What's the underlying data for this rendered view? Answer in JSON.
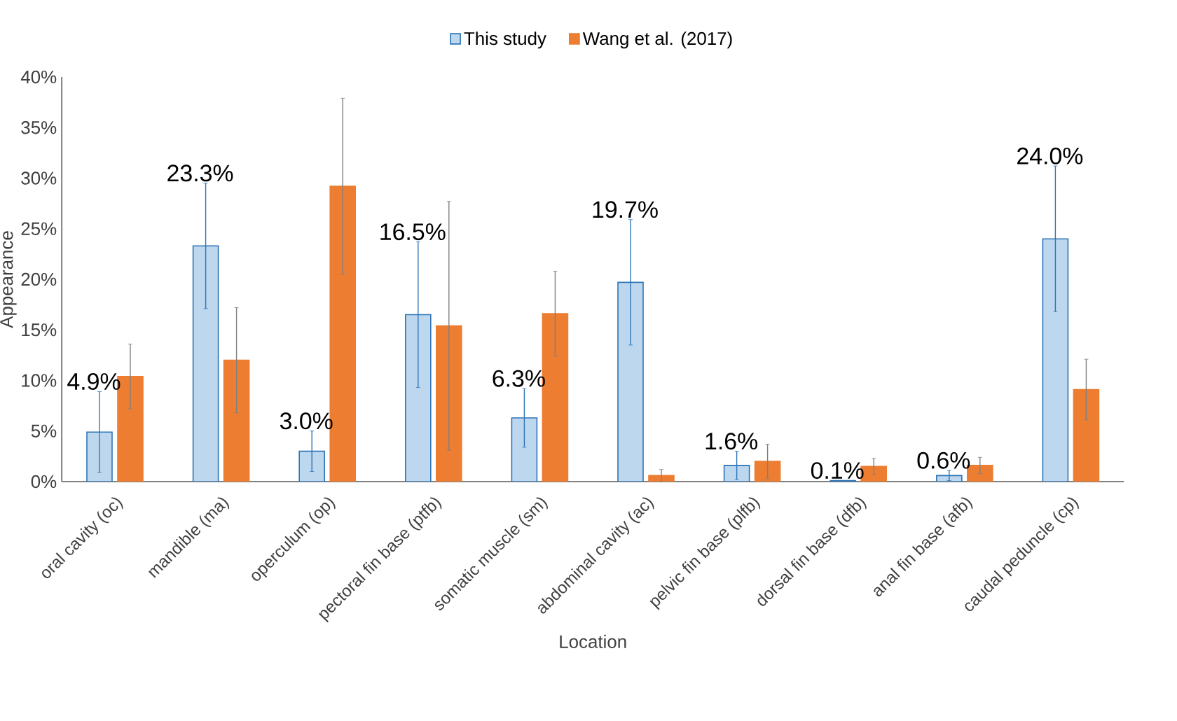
{
  "chart_data": {
    "type": "bar",
    "xlabel": "Location",
    "ylabel": "Appearance",
    "categories": [
      "oral cavity (oc)",
      "mandible (ma)",
      "operculum (op)",
      "pectoral fin base (ptfb)",
      "somatic muscle (sm)",
      "abdominal cavity (ac)",
      "pelvic fin base (plfb)",
      "dorsal fin base (dfb)",
      "anal fin base (afb)",
      "caudal peduncle (cp)"
    ],
    "series": [
      {
        "name": "This study",
        "color": "#bdd7ee",
        "values": [
          4.9,
          23.3,
          3.0,
          16.5,
          6.3,
          19.7,
          1.6,
          0.1,
          0.6,
          24.0
        ],
        "errors": [
          4.0,
          6.2,
          2.0,
          7.2,
          2.9,
          6.2,
          1.4,
          null,
          0.5,
          7.2
        ],
        "value_labels": [
          "4.9%",
          "23.3%",
          "3.0%",
          "16.5%",
          "6.3%",
          "19.7%",
          "1.6%",
          "0.1%",
          "0.6%",
          "24.0%"
        ]
      },
      {
        "name": "Wang et al. (2017)",
        "color": "#ed7d31",
        "values": [
          10.4,
          12.0,
          29.2,
          15.4,
          16.6,
          0.6,
          2.0,
          1.5,
          1.6,
          9.1
        ],
        "errors": [
          3.2,
          5.2,
          8.7,
          12.3,
          4.2,
          0.6,
          1.7,
          0.8,
          0.8,
          3.0
        ]
      }
    ],
    "ylim": [
      0,
      40
    ],
    "yticks": [
      {
        "value": 0,
        "label": "0%"
      },
      {
        "value": 5,
        "label": "5%"
      },
      {
        "value": 10,
        "label": "10%"
      },
      {
        "value": 15,
        "label": "15%"
      },
      {
        "value": 20,
        "label": "20%"
      },
      {
        "value": 25,
        "label": "25%"
      },
      {
        "value": 30,
        "label": "30%"
      },
      {
        "value": 35,
        "label": "35%"
      },
      {
        "value": 40,
        "label": "40%"
      }
    ],
    "grid": false,
    "legend": "top"
  }
}
